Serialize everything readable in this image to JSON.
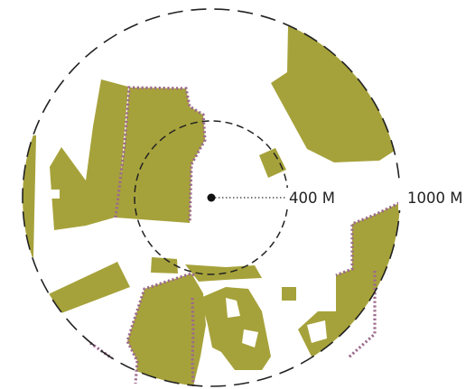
{
  "map": {
    "inner_ring_label": "400 M",
    "outer_ring_label": "1000 M",
    "colors": {
      "parcel": "#a6a23b",
      "boundary": "#9d6a8e",
      "ring": "#222222"
    }
  }
}
